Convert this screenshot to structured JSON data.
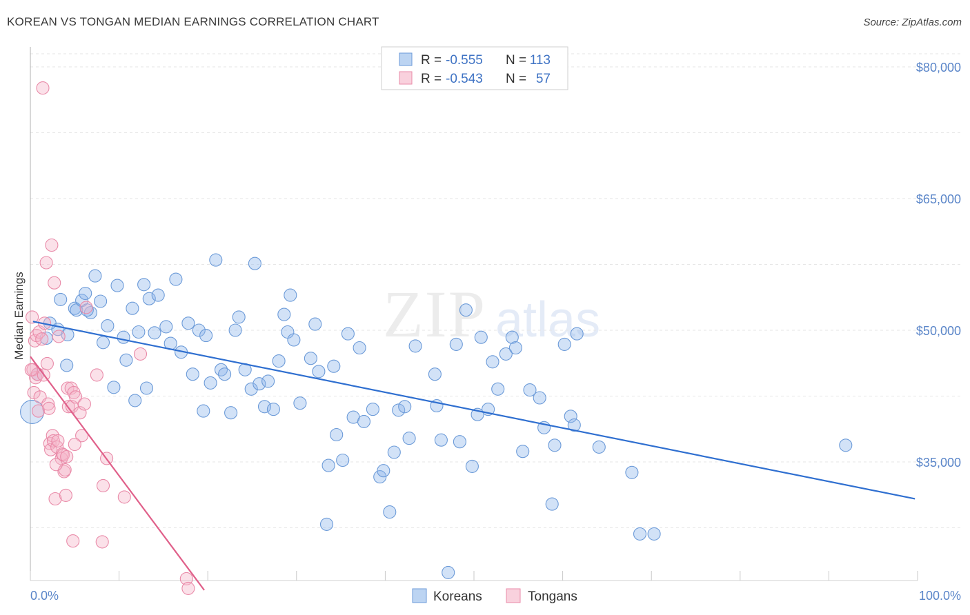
{
  "chart_data": {
    "type": "scatter",
    "title": "KOREAN VS TONGAN MEDIAN EARNINGS CORRELATION CHART",
    "source": "Source: ZipAtlas.com",
    "watermark": "ZIPatlas",
    "xlabel": "",
    "ylabel": "Median Earnings",
    "xlim": [
      0,
      100
    ],
    "ylim": [
      20000,
      82500
    ],
    "x_tick_labels": [
      "0.0%",
      "100.0%"
    ],
    "y_ticks": [
      35000,
      50000,
      65000,
      80000
    ],
    "y_tick_labels": [
      "$35,000",
      "$50,000",
      "$65,000",
      "$80,000"
    ],
    "legend": {
      "rows": [
        {
          "r_label": "R =",
          "r_value": "-0.555",
          "n_label": "N =",
          "n_value": "113"
        },
        {
          "r_label": "R =",
          "r_value": "-0.543",
          "n_label": "N =",
          "n_value": "57"
        }
      ]
    },
    "series": [
      {
        "name": "Koreans",
        "color": "#8fb7ea",
        "stroke": "#6b9ad8",
        "line_color": "#2f6fd0",
        "trend": {
          "x0": 0.3,
          "y0": 51000,
          "x1": 99.7,
          "y1": 30800
        },
        "points": [
          [
            0.2,
            40700
          ],
          [
            0.8,
            45000
          ],
          [
            1.8,
            49100
          ],
          [
            2.2,
            50800
          ],
          [
            3.1,
            50100
          ],
          [
            3.4,
            53500
          ],
          [
            4.2,
            49500
          ],
          [
            4.1,
            46000
          ],
          [
            5.0,
            52500
          ],
          [
            5.2,
            52300
          ],
          [
            5.8,
            53400
          ],
          [
            6.2,
            54200
          ],
          [
            6.8,
            52000
          ],
          [
            7.3,
            56200
          ],
          [
            7.9,
            53300
          ],
          [
            8.2,
            48600
          ],
          [
            8.7,
            50500
          ],
          [
            9.4,
            43500
          ],
          [
            9.8,
            55100
          ],
          [
            10.5,
            49200
          ],
          [
            10.8,
            46600
          ],
          [
            11.5,
            52500
          ],
          [
            11.8,
            42000
          ],
          [
            12.2,
            49800
          ],
          [
            12.8,
            55200
          ],
          [
            13.1,
            43400
          ],
          [
            13.4,
            53600
          ],
          [
            14.0,
            49700
          ],
          [
            14.4,
            54000
          ],
          [
            15.3,
            50400
          ],
          [
            15.8,
            48500
          ],
          [
            16.4,
            55800
          ],
          [
            17.0,
            47500
          ],
          [
            17.8,
            50800
          ],
          [
            18.3,
            45000
          ],
          [
            19.0,
            50000
          ],
          [
            19.5,
            40800
          ],
          [
            19.8,
            49400
          ],
          [
            20.3,
            44000
          ],
          [
            20.9,
            58000
          ],
          [
            21.5,
            45500
          ],
          [
            21.9,
            45000
          ],
          [
            22.6,
            40600
          ],
          [
            23.1,
            50000
          ],
          [
            23.5,
            51500
          ],
          [
            24.2,
            45500
          ],
          [
            24.9,
            43300
          ],
          [
            25.3,
            57600
          ],
          [
            25.8,
            43900
          ],
          [
            26.4,
            41300
          ],
          [
            26.8,
            44200
          ],
          [
            27.4,
            41000
          ],
          [
            28.0,
            46500
          ],
          [
            28.6,
            51800
          ],
          [
            29.0,
            49800
          ],
          [
            29.3,
            54000
          ],
          [
            29.7,
            48900
          ],
          [
            30.4,
            41700
          ],
          [
            31.6,
            46800
          ],
          [
            32.1,
            50700
          ],
          [
            32.5,
            45300
          ],
          [
            33.4,
            27900
          ],
          [
            33.6,
            34600
          ],
          [
            34.2,
            45900
          ],
          [
            34.5,
            38100
          ],
          [
            35.2,
            35200
          ],
          [
            35.8,
            49600
          ],
          [
            36.4,
            40100
          ],
          [
            37.1,
            48000
          ],
          [
            37.6,
            39600
          ],
          [
            38.6,
            41000
          ],
          [
            39.4,
            33300
          ],
          [
            39.8,
            34000
          ],
          [
            40.5,
            29300
          ],
          [
            41.0,
            36100
          ],
          [
            41.5,
            40900
          ],
          [
            42.2,
            41300
          ],
          [
            42.7,
            37700
          ],
          [
            43.4,
            48200
          ],
          [
            45.6,
            45000
          ],
          [
            45.8,
            41400
          ],
          [
            46.3,
            37500
          ],
          [
            47.1,
            22400
          ],
          [
            48.0,
            48400
          ],
          [
            48.4,
            37300
          ],
          [
            49.1,
            52300
          ],
          [
            49.8,
            34500
          ],
          [
            50.4,
            40400
          ],
          [
            50.8,
            49200
          ],
          [
            51.6,
            41000
          ],
          [
            52.1,
            46400
          ],
          [
            52.7,
            43300
          ],
          [
            53.6,
            47300
          ],
          [
            54.3,
            49200
          ],
          [
            54.7,
            48000
          ],
          [
            55.5,
            36200
          ],
          [
            56.3,
            43200
          ],
          [
            57.4,
            42300
          ],
          [
            57.9,
            38900
          ],
          [
            58.8,
            30200
          ],
          [
            59.1,
            36900
          ],
          [
            60.2,
            48400
          ],
          [
            60.9,
            40200
          ],
          [
            61.3,
            39200
          ],
          [
            61.6,
            49600
          ],
          [
            64.1,
            36700
          ],
          [
            67.8,
            33800
          ],
          [
            68.7,
            26800
          ],
          [
            70.3,
            26800
          ],
          [
            91.9,
            36900
          ],
          [
            6.4,
            52300
          ]
        ]
      },
      {
        "name": "Tongans",
        "color": "#f5b3c7",
        "stroke": "#e98aa8",
        "line_color": "#e0608a",
        "trend": {
          "x0": 0.0,
          "y0": 47000,
          "x1": 19.6,
          "y1": 20400
        },
        "points": [
          [
            0.2,
            51500
          ],
          [
            0.3,
            45500
          ],
          [
            0.4,
            42900
          ],
          [
            0.5,
            48800
          ],
          [
            0.6,
            44600
          ],
          [
            0.7,
            49400
          ],
          [
            0.8,
            45000
          ],
          [
            0.9,
            40800
          ],
          [
            1.0,
            49800
          ],
          [
            1.1,
            42400
          ],
          [
            1.3,
            49000
          ],
          [
            1.4,
            77600
          ],
          [
            1.5,
            44900
          ],
          [
            1.8,
            57700
          ],
          [
            1.9,
            46200
          ],
          [
            2.0,
            41600
          ],
          [
            2.1,
            41100
          ],
          [
            2.2,
            37100
          ],
          [
            2.3,
            36400
          ],
          [
            2.4,
            59700
          ],
          [
            2.5,
            38000
          ],
          [
            2.6,
            37400
          ],
          [
            2.7,
            55400
          ],
          [
            2.8,
            30800
          ],
          [
            3.0,
            36700
          ],
          [
            3.1,
            37400
          ],
          [
            3.2,
            49300
          ],
          [
            3.5,
            35400
          ],
          [
            3.6,
            35900
          ],
          [
            3.7,
            35800
          ],
          [
            3.8,
            33900
          ],
          [
            3.9,
            34100
          ],
          [
            4.0,
            31200
          ],
          [
            4.1,
            35600
          ],
          [
            4.2,
            43400
          ],
          [
            4.3,
            41300
          ],
          [
            4.6,
            43400
          ],
          [
            4.7,
            41300
          ],
          [
            4.8,
            26000
          ],
          [
            4.9,
            42900
          ],
          [
            5.1,
            42400
          ],
          [
            5.6,
            40600
          ],
          [
            5.8,
            38000
          ],
          [
            6.1,
            41600
          ],
          [
            6.3,
            52600
          ],
          [
            7.5,
            44900
          ],
          [
            8.1,
            25900
          ],
          [
            8.2,
            32300
          ],
          [
            8.6,
            35400
          ],
          [
            10.6,
            31000
          ],
          [
            12.4,
            47300
          ],
          [
            17.6,
            21700
          ],
          [
            17.8,
            20600
          ],
          [
            5.0,
            37000
          ],
          [
            2.9,
            34700
          ],
          [
            1.6,
            50800
          ],
          [
            0.1,
            45500
          ]
        ]
      }
    ]
  },
  "bottom_legend": {
    "items": [
      "Koreans",
      "Tongans"
    ]
  }
}
